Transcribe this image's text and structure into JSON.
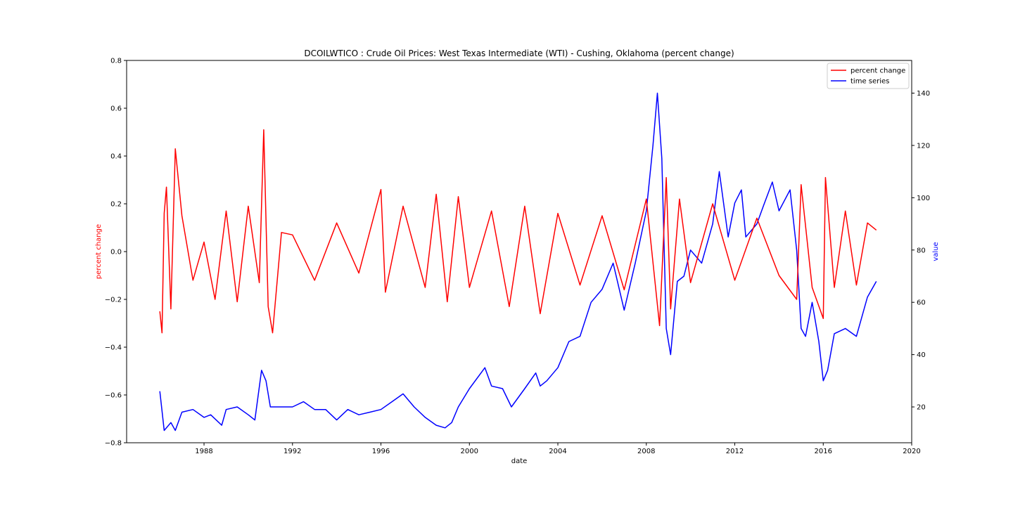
{
  "chart_data": {
    "type": "line",
    "title": "DCOILWTICO :  Crude Oil Prices: West Texas Intermediate (WTI) - Cushing, Oklahoma (percent change)",
    "xlabel": "date",
    "ylabel_left": "percent change",
    "ylabel_right": "value",
    "xlim": [
      1984.5,
      2020
    ],
    "ylim_left": [
      -0.8,
      0.8
    ],
    "ylim_right": [
      6.3,
      152.5
    ],
    "x_ticks": [
      1988,
      1992,
      1996,
      2000,
      2004,
      2008,
      2012,
      2016,
      2020
    ],
    "y_ticks_left": [
      "0.8",
      "0.6",
      "0.4",
      "0.2",
      "0.0",
      "−0.2",
      "−0.4",
      "−0.6",
      "−0.8"
    ],
    "y_ticks_left_values": [
      0.8,
      0.6,
      0.4,
      0.2,
      0.0,
      -0.2,
      -0.4,
      -0.6,
      -0.8
    ],
    "y_ticks_right": [
      "140",
      "120",
      "100",
      "80",
      "60",
      "40",
      "20"
    ],
    "y_ticks_right_values": [
      140,
      120,
      100,
      80,
      60,
      40,
      20
    ],
    "grid": false,
    "legend_position": "top-right",
    "series": [
      {
        "name": "percent change",
        "axis": "left",
        "color": "#ff0000",
        "x": [
          1986.0,
          1986.1,
          1986.2,
          1986.3,
          1986.5,
          1986.7,
          1987.0,
          1987.5,
          1988.0,
          1988.5,
          1989.0,
          1989.5,
          1990.0,
          1990.5,
          1990.7,
          1990.9,
          1991.1,
          1991.5,
          1992.0,
          1993.0,
          1994.0,
          1995.0,
          1996.0,
          1996.2,
          1997.0,
          1998.0,
          1998.5,
          1999.0,
          1999.5,
          2000.0,
          2001.0,
          2001.8,
          2002.5,
          2003.2,
          2004.0,
          2005.0,
          2006.0,
          2007.0,
          2008.0,
          2008.6,
          2008.9,
          2009.1,
          2009.5,
          2010.0,
          2011.0,
          2012.0,
          2013.0,
          2014.0,
          2014.8,
          2015.0,
          2015.5,
          2016.0,
          2016.1,
          2016.5,
          2017.0,
          2017.5,
          2018.0,
          2018.4
        ],
        "values": [
          -0.25,
          -0.34,
          0.16,
          0.27,
          -0.24,
          0.43,
          0.15,
          -0.12,
          0.04,
          -0.2,
          0.17,
          -0.21,
          0.19,
          -0.13,
          0.51,
          -0.23,
          -0.34,
          0.08,
          0.07,
          -0.12,
          0.12,
          -0.09,
          0.26,
          -0.17,
          0.19,
          -0.15,
          0.24,
          -0.21,
          0.23,
          -0.15,
          0.17,
          -0.23,
          0.19,
          -0.26,
          0.16,
          -0.14,
          0.15,
          -0.16,
          0.22,
          -0.31,
          0.31,
          -0.24,
          0.22,
          -0.13,
          0.2,
          -0.12,
          0.14,
          -0.1,
          -0.2,
          0.28,
          -0.15,
          -0.28,
          0.31,
          -0.15,
          0.17,
          -0.14,
          0.12,
          0.09
        ]
      },
      {
        "name": "time series",
        "axis": "right",
        "color": "#0000ff",
        "x": [
          1986.0,
          1986.2,
          1986.5,
          1986.7,
          1987.0,
          1987.5,
          1988.0,
          1988.3,
          1988.8,
          1989.0,
          1989.5,
          1990.0,
          1990.3,
          1990.6,
          1990.8,
          1991.0,
          1991.5,
          1992.0,
          1992.5,
          1993.0,
          1993.5,
          1994.0,
          1994.5,
          1995.0,
          1995.5,
          1996.0,
          1996.5,
          1997.0,
          1997.5,
          1998.0,
          1998.5,
          1998.9,
          1999.2,
          1999.5,
          2000.0,
          2000.7,
          2001.0,
          2001.5,
          2001.9,
          2002.5,
          2003.0,
          2003.2,
          2003.5,
          2004.0,
          2004.5,
          2005.0,
          2005.5,
          2006.0,
          2006.5,
          2007.0,
          2007.5,
          2008.0,
          2008.3,
          2008.5,
          2008.7,
          2008.9,
          2009.1,
          2009.4,
          2009.7,
          2010.0,
          2010.5,
          2011.0,
          2011.3,
          2011.7,
          2012.0,
          2012.3,
          2012.5,
          2013.0,
          2013.3,
          2013.7,
          2014.0,
          2014.5,
          2014.8,
          2015.0,
          2015.2,
          2015.5,
          2015.8,
          2016.0,
          2016.2,
          2016.5,
          2017.0,
          2017.5,
          2018.0,
          2018.4
        ],
        "values": [
          26,
          11,
          14,
          11,
          18,
          19,
          16,
          17,
          13,
          19,
          20,
          17,
          15,
          34,
          30,
          20,
          20,
          20,
          22,
          19,
          19,
          15,
          19,
          17,
          18,
          19,
          22,
          25,
          20,
          16,
          13,
          12,
          14,
          20,
          27,
          35,
          28,
          27,
          20,
          27,
          33,
          28,
          30,
          35,
          45,
          47,
          60,
          65,
          75,
          57,
          75,
          95,
          120,
          140,
          115,
          50,
          40,
          68,
          70,
          80,
          75,
          90,
          110,
          85,
          98,
          103,
          85,
          90,
          97,
          106,
          95,
          103,
          80,
          50,
          47,
          60,
          45,
          30,
          34,
          48,
          50,
          47,
          62,
          68
        ]
      }
    ]
  },
  "legend": {
    "items": [
      {
        "label": "percent change",
        "color": "#ff0000"
      },
      {
        "label": "time series",
        "color": "#0000ff"
      }
    ]
  }
}
